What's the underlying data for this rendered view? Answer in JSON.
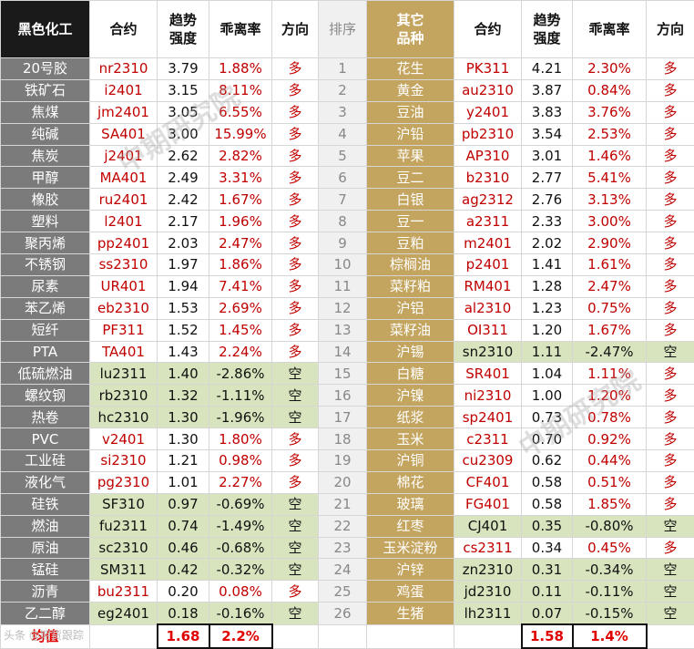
{
  "headers": {
    "left_group": "黑色化工",
    "contract": "合约",
    "trend_strength": "趋势\n强度",
    "deviation": "乖离率",
    "direction": "方向",
    "rank": "排序",
    "right_group": "其它\n品种"
  },
  "left_rows": [
    {
      "name": "20号胶",
      "code": "nr2310",
      "strength": "3.79",
      "dev": "1.88%",
      "dir": "多",
      "green": false
    },
    {
      "name": "铁矿石",
      "code": "i2401",
      "strength": "3.15",
      "dev": "8.11%",
      "dir": "多",
      "green": false
    },
    {
      "name": "焦煤",
      "code": "jm2401",
      "strength": "3.05",
      "dev": "6.55%",
      "dir": "多",
      "green": false
    },
    {
      "name": "纯碱",
      "code": "SA401",
      "strength": "3.00",
      "dev": "15.99%",
      "dir": "多",
      "green": false
    },
    {
      "name": "焦炭",
      "code": "j2401",
      "strength": "2.62",
      "dev": "2.82%",
      "dir": "多",
      "green": false
    },
    {
      "name": "甲醇",
      "code": "MA401",
      "strength": "2.49",
      "dev": "3.31%",
      "dir": "多",
      "green": false
    },
    {
      "name": "橡胶",
      "code": "ru2401",
      "strength": "2.42",
      "dev": "1.67%",
      "dir": "多",
      "green": false
    },
    {
      "name": "塑料",
      "code": "l2401",
      "strength": "2.17",
      "dev": "1.96%",
      "dir": "多",
      "green": false
    },
    {
      "name": "聚丙烯",
      "code": "pp2401",
      "strength": "2.03",
      "dev": "2.47%",
      "dir": "多",
      "green": false
    },
    {
      "name": "不锈钢",
      "code": "ss2310",
      "strength": "1.97",
      "dev": "1.86%",
      "dir": "多",
      "green": false
    },
    {
      "name": "尿素",
      "code": "UR401",
      "strength": "1.94",
      "dev": "7.41%",
      "dir": "多",
      "green": false
    },
    {
      "name": "苯乙烯",
      "code": "eb2310",
      "strength": "1.53",
      "dev": "2.69%",
      "dir": "多",
      "green": false
    },
    {
      "name": "短纤",
      "code": "PF311",
      "strength": "1.52",
      "dev": "1.45%",
      "dir": "多",
      "green": false
    },
    {
      "name": "PTA",
      "code": "TA401",
      "strength": "1.43",
      "dev": "2.24%",
      "dir": "多",
      "green": false
    },
    {
      "name": "低硫燃油",
      "code": "lu2311",
      "strength": "1.40",
      "dev": "-2.86%",
      "dir": "空",
      "green": true
    },
    {
      "name": "螺纹钢",
      "code": "rb2310",
      "strength": "1.32",
      "dev": "-1.11%",
      "dir": "空",
      "green": true
    },
    {
      "name": "热卷",
      "code": "hc2310",
      "strength": "1.30",
      "dev": "-1.96%",
      "dir": "空",
      "green": true
    },
    {
      "name": "PVC",
      "code": "v2401",
      "strength": "1.30",
      "dev": "1.80%",
      "dir": "多",
      "green": false
    },
    {
      "name": "工业硅",
      "code": "si2310",
      "strength": "1.21",
      "dev": "0.98%",
      "dir": "多",
      "green": false
    },
    {
      "name": "液化气",
      "code": "pg2310",
      "strength": "1.01",
      "dev": "2.27%",
      "dir": "多",
      "green": false
    },
    {
      "name": "硅铁",
      "code": "SF310",
      "strength": "0.97",
      "dev": "-0.69%",
      "dir": "空",
      "green": true
    },
    {
      "name": "燃油",
      "code": "fu2311",
      "strength": "0.74",
      "dev": "-1.49%",
      "dir": "空",
      "green": true
    },
    {
      "name": "原油",
      "code": "sc2310",
      "strength": "0.46",
      "dev": "-0.68%",
      "dir": "空",
      "green": true
    },
    {
      "name": "锰硅",
      "code": "SM311",
      "strength": "0.42",
      "dev": "-0.32%",
      "dir": "空",
      "green": true
    },
    {
      "name": "沥青",
      "code": "bu2311",
      "strength": "0.20",
      "dev": "0.08%",
      "dir": "多",
      "green": false
    },
    {
      "name": "乙二醇",
      "code": "eg2401",
      "strength": "0.18",
      "dev": "-0.16%",
      "dir": "空",
      "green": true
    }
  ],
  "ranks": [
    "1",
    "2",
    "3",
    "4",
    "5",
    "6",
    "7",
    "8",
    "9",
    "10",
    "11",
    "12",
    "13",
    "14",
    "15",
    "16",
    "17",
    "18",
    "19",
    "20",
    "21",
    "22",
    "23",
    "24",
    "25",
    "26"
  ],
  "right_rows": [
    {
      "name": "花生",
      "code": "PK311",
      "strength": "4.21",
      "dev": "2.30%",
      "dir": "多",
      "green": false
    },
    {
      "name": "黄金",
      "code": "au2310",
      "strength": "3.87",
      "dev": "0.84%",
      "dir": "多",
      "green": false
    },
    {
      "name": "豆油",
      "code": "y2401",
      "strength": "3.83",
      "dev": "3.76%",
      "dir": "多",
      "green": false
    },
    {
      "name": "沪铅",
      "code": "pb2310",
      "strength": "3.54",
      "dev": "2.53%",
      "dir": "多",
      "green": false
    },
    {
      "name": "苹果",
      "code": "AP310",
      "strength": "3.01",
      "dev": "1.46%",
      "dir": "多",
      "green": false
    },
    {
      "name": "豆二",
      "code": "b2310",
      "strength": "2.77",
      "dev": "5.41%",
      "dir": "多",
      "green": false
    },
    {
      "name": "白银",
      "code": "ag2312",
      "strength": "2.76",
      "dev": "3.13%",
      "dir": "多",
      "green": false
    },
    {
      "name": "豆一",
      "code": "a2311",
      "strength": "2.33",
      "dev": "3.00%",
      "dir": "多",
      "green": false
    },
    {
      "name": "豆粕",
      "code": "m2401",
      "strength": "2.02",
      "dev": "2.90%",
      "dir": "多",
      "green": false
    },
    {
      "name": "棕榈油",
      "code": "p2401",
      "strength": "1.41",
      "dev": "1.61%",
      "dir": "多",
      "green": false
    },
    {
      "name": "菜籽粕",
      "code": "RM401",
      "strength": "1.28",
      "dev": "2.47%",
      "dir": "多",
      "green": false
    },
    {
      "name": "沪铝",
      "code": "al2310",
      "strength": "1.23",
      "dev": "0.75%",
      "dir": "多",
      "green": false
    },
    {
      "name": "菜籽油",
      "code": "OI311",
      "strength": "1.20",
      "dev": "1.67%",
      "dir": "多",
      "green": false
    },
    {
      "name": "沪锡",
      "code": "sn2310",
      "strength": "1.11",
      "dev": "-2.47%",
      "dir": "空",
      "green": true
    },
    {
      "name": "白糖",
      "code": "SR401",
      "strength": "1.04",
      "dev": "1.11%",
      "dir": "多",
      "green": false
    },
    {
      "name": "沪镍",
      "code": "ni2310",
      "strength": "1.00",
      "dev": "1.20%",
      "dir": "多",
      "green": false
    },
    {
      "name": "纸浆",
      "code": "sp2401",
      "strength": "0.73",
      "dev": "0.78%",
      "dir": "多",
      "green": false
    },
    {
      "name": "玉米",
      "code": "c2311",
      "strength": "0.70",
      "dev": "0.92%",
      "dir": "多",
      "green": false
    },
    {
      "name": "沪铜",
      "code": "cu2309",
      "strength": "0.62",
      "dev": "0.44%",
      "dir": "多",
      "green": false
    },
    {
      "name": "棉花",
      "code": "CF401",
      "strength": "0.58",
      "dev": "0.51%",
      "dir": "多",
      "green": false
    },
    {
      "name": "玻璃",
      "code": "FG401",
      "strength": "0.58",
      "dev": "1.85%",
      "dir": "多",
      "green": false
    },
    {
      "name": "红枣",
      "code": "CJ401",
      "strength": "0.35",
      "dev": "-0.80%",
      "dir": "空",
      "green": true
    },
    {
      "name": "玉米淀粉",
      "code": "cs2311",
      "strength": "0.34",
      "dev": "0.45%",
      "dir": "多",
      "green": false
    },
    {
      "name": "沪锌",
      "code": "zn2310",
      "strength": "0.31",
      "dev": "-0.34%",
      "dir": "空",
      "green": true
    },
    {
      "name": "鸡蛋",
      "code": "jd2310",
      "strength": "0.11",
      "dev": "-0.11%",
      "dir": "空",
      "green": true
    },
    {
      "name": "生猪",
      "code": "lh2311",
      "strength": "0.07",
      "dev": "-0.15%",
      "dir": "空",
      "green": true
    }
  ],
  "footer": {
    "label": "均值",
    "left_strength_avg": "1.68",
    "left_dev_avg": "2.2%",
    "right_strength_avg": "1.58",
    "right_dev_avg": "1.4%"
  },
  "watermark": "中期研究院",
  "corner_text": "头条 @期货跟踪"
}
